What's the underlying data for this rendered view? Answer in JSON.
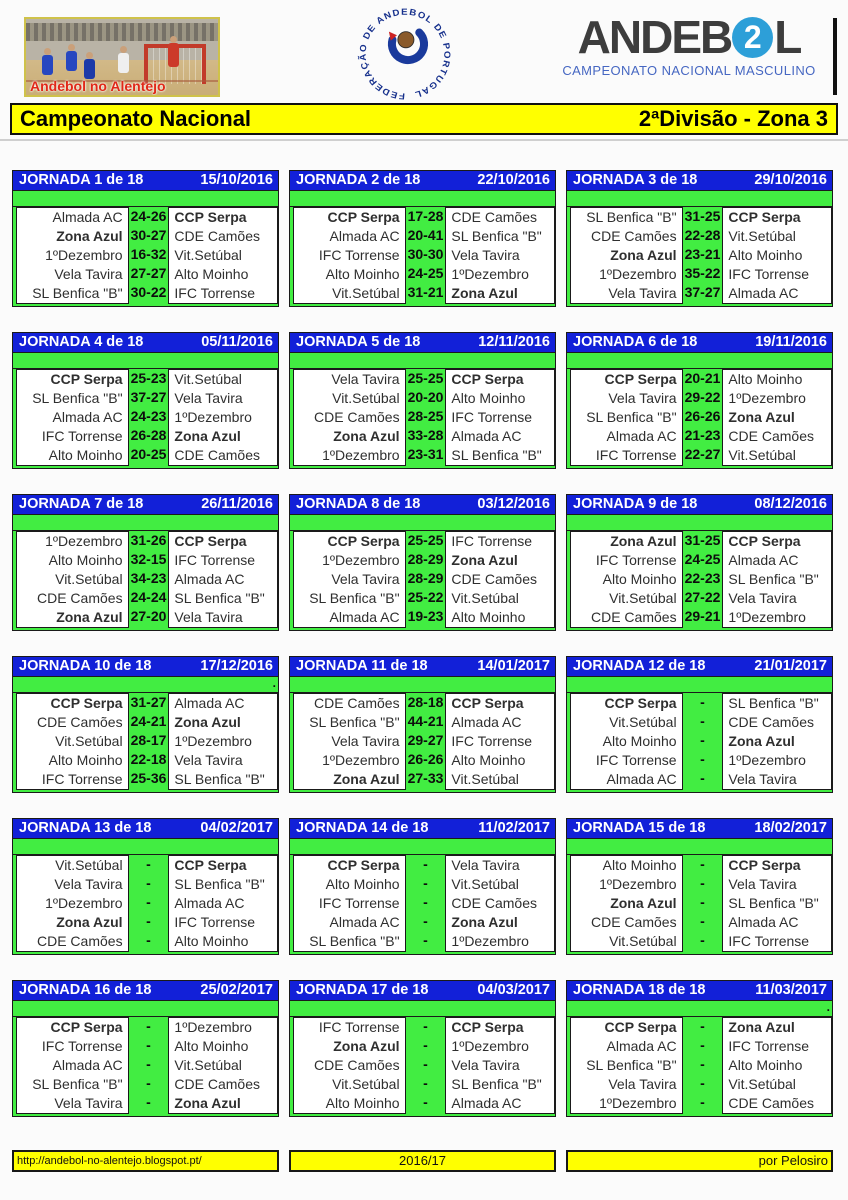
{
  "header": {
    "photo_caption": "Andebol no Alentejo",
    "federation_ring_text": "FEDERAÇÃO DE ANDEBOL DE PORTUGAL",
    "brand": {
      "part1": "ANDEB",
      "circle_digit": "2",
      "part2": "L",
      "subtitle": "CAMPEONATO NACIONAL MASCULINO"
    }
  },
  "title_bar": {
    "left": "Campeonato Nacional",
    "right": "2ªDivisão - Zona 3"
  },
  "colors": {
    "header_blue": "#1220d8",
    "bright_green": "#42ed42",
    "team_highlight_blue": "#1616e0",
    "banner_yellow": "#ffff00",
    "brand_circle_blue": "#2d9fd8"
  },
  "highlight_teams": [
    "CCP Serpa",
    "Zona Azul"
  ],
  "jornadas": [
    {
      "title": "JORNADA 1 de 18",
      "date": "15/10/2016",
      "dot": false,
      "matches": [
        {
          "home": "Almada AC",
          "score": "24-26",
          "away": "CCP Serpa"
        },
        {
          "home": "Zona Azul",
          "score": "30-27",
          "away": "CDE Camões"
        },
        {
          "home": "1ºDezembro",
          "score": "16-32",
          "away": "Vit.Setúbal"
        },
        {
          "home": "Vela Tavira",
          "score": "27-27",
          "away": "Alto Moinho"
        },
        {
          "home": "SL Benfica \"B\"",
          "score": "30-22",
          "away": "IFC Torrense"
        }
      ]
    },
    {
      "title": "JORNADA 2 de 18",
      "date": "22/10/2016",
      "dot": false,
      "matches": [
        {
          "home": "CCP Serpa",
          "score": "17-28",
          "away": "CDE Camões"
        },
        {
          "home": "Almada AC",
          "score": "20-41",
          "away": "SL Benfica \"B\""
        },
        {
          "home": "IFC Torrense",
          "score": "30-30",
          "away": "Vela Tavira"
        },
        {
          "home": "Alto Moinho",
          "score": "24-25",
          "away": "1ºDezembro"
        },
        {
          "home": "Vit.Setúbal",
          "score": "31-21",
          "away": "Zona Azul"
        }
      ]
    },
    {
      "title": "JORNADA 3 de 18",
      "date": "29/10/2016",
      "dot": false,
      "matches": [
        {
          "home": "SL Benfica \"B\"",
          "score": "31-25",
          "away": "CCP Serpa"
        },
        {
          "home": "CDE Camões",
          "score": "22-28",
          "away": "Vit.Setúbal"
        },
        {
          "home": "Zona Azul",
          "score": "23-21",
          "away": "Alto Moinho"
        },
        {
          "home": "1ºDezembro",
          "score": "35-22",
          "away": "IFC Torrense"
        },
        {
          "home": "Vela Tavira",
          "score": "37-27",
          "away": "Almada AC"
        }
      ]
    },
    {
      "title": "JORNADA 4 de 18",
      "date": "05/11/2016",
      "dot": false,
      "matches": [
        {
          "home": "CCP Serpa",
          "score": "25-23",
          "away": "Vit.Setúbal"
        },
        {
          "home": "SL Benfica \"B\"",
          "score": "37-27",
          "away": "Vela Tavira"
        },
        {
          "home": "Almada AC",
          "score": "24-23",
          "away": "1ºDezembro"
        },
        {
          "home": "IFC Torrense",
          "score": "26-28",
          "away": "Zona Azul"
        },
        {
          "home": "Alto Moinho",
          "score": "20-25",
          "away": "CDE Camões"
        }
      ]
    },
    {
      "title": "JORNADA 5 de 18",
      "date": "12/11/2016",
      "dot": false,
      "matches": [
        {
          "home": "Vela Tavira",
          "score": "25-25",
          "away": "CCP Serpa"
        },
        {
          "home": "Vit.Setúbal",
          "score": "20-20",
          "away": "Alto Moinho"
        },
        {
          "home": "CDE Camões",
          "score": "28-25",
          "away": "IFC Torrense"
        },
        {
          "home": "Zona Azul",
          "score": "33-28",
          "away": "Almada AC"
        },
        {
          "home": "1ºDezembro",
          "score": "23-31",
          "away": "SL Benfica \"B\""
        }
      ]
    },
    {
      "title": "JORNADA 6 de 18",
      "date": "19/11/2016",
      "dot": false,
      "matches": [
        {
          "home": "CCP Serpa",
          "score": "20-21",
          "away": "Alto Moinho"
        },
        {
          "home": "Vela Tavira",
          "score": "29-22",
          "away": "1ºDezembro"
        },
        {
          "home": "SL Benfica \"B\"",
          "score": "26-26",
          "away": "Zona Azul"
        },
        {
          "home": "Almada AC",
          "score": "21-23",
          "away": "CDE Camões"
        },
        {
          "home": "IFC Torrense",
          "score": "22-27",
          "away": "Vit.Setúbal"
        }
      ]
    },
    {
      "title": "JORNADA 7 de 18",
      "date": "26/11/2016",
      "dot": false,
      "matches": [
        {
          "home": "1ºDezembro",
          "score": "31-26",
          "away": "CCP Serpa"
        },
        {
          "home": "Alto Moinho",
          "score": "32-15",
          "away": "IFC Torrense"
        },
        {
          "home": "Vit.Setúbal",
          "score": "34-23",
          "away": "Almada AC"
        },
        {
          "home": "CDE Camões",
          "score": "24-24",
          "away": "SL Benfica \"B\""
        },
        {
          "home": "Zona Azul",
          "score": "27-20",
          "away": "Vela Tavira"
        }
      ]
    },
    {
      "title": "JORNADA 8 de 18",
      "date": "03/12/2016",
      "dot": false,
      "matches": [
        {
          "home": "CCP Serpa",
          "score": "25-25",
          "away": "IFC Torrense"
        },
        {
          "home": "1ºDezembro",
          "score": "28-29",
          "away": "Zona Azul"
        },
        {
          "home": "Vela Tavira",
          "score": "28-29",
          "away": "CDE Camões"
        },
        {
          "home": "SL Benfica \"B\"",
          "score": "25-22",
          "away": "Vit.Setúbal"
        },
        {
          "home": "Almada AC",
          "score": "19-23",
          "away": "Alto Moinho"
        }
      ]
    },
    {
      "title": "JORNADA 9 de 18",
      "date": "08/12/2016",
      "dot": false,
      "matches": [
        {
          "home": "Zona Azul",
          "score": "31-25",
          "away": "CCP Serpa"
        },
        {
          "home": "IFC Torrense",
          "score": "24-25",
          "away": "Almada AC"
        },
        {
          "home": "Alto Moinho",
          "score": "22-23",
          "away": "SL Benfica \"B\""
        },
        {
          "home": "Vit.Setúbal",
          "score": "27-22",
          "away": "Vela Tavira"
        },
        {
          "home": "CDE Camões",
          "score": "29-21",
          "away": "1ºDezembro"
        }
      ]
    },
    {
      "title": "JORNADA 10 de 18",
      "date": "17/12/2016",
      "dot": true,
      "matches": [
        {
          "home": "CCP Serpa",
          "score": "31-27",
          "away": "Almada AC"
        },
        {
          "home": "CDE Camões",
          "score": "24-21",
          "away": "Zona Azul"
        },
        {
          "home": "Vit.Setúbal",
          "score": "28-17",
          "away": "1ºDezembro"
        },
        {
          "home": "Alto Moinho",
          "score": "22-18",
          "away": "Vela Tavira"
        },
        {
          "home": "IFC Torrense",
          "score": "25-36",
          "away": "SL Benfica \"B\""
        }
      ]
    },
    {
      "title": "JORNADA 11 de 18",
      "date": "14/01/2017",
      "dot": false,
      "matches": [
        {
          "home": "CDE Camões",
          "score": "28-18",
          "away": "CCP Serpa"
        },
        {
          "home": "SL Benfica \"B\"",
          "score": "44-21",
          "away": "Almada AC"
        },
        {
          "home": "Vela Tavira",
          "score": "29-27",
          "away": "IFC Torrense"
        },
        {
          "home": "1ºDezembro",
          "score": "26-26",
          "away": "Alto Moinho"
        },
        {
          "home": "Zona Azul",
          "score": "27-33",
          "away": "Vit.Setúbal"
        }
      ]
    },
    {
      "title": "JORNADA 12 de 18",
      "date": "21/01/2017",
      "dot": false,
      "matches": [
        {
          "home": "CCP Serpa",
          "score": "-",
          "away": "SL Benfica \"B\""
        },
        {
          "home": "Vit.Setúbal",
          "score": "-",
          "away": "CDE Camões"
        },
        {
          "home": "Alto Moinho",
          "score": "-",
          "away": "Zona Azul"
        },
        {
          "home": "IFC Torrense",
          "score": "-",
          "away": "1ºDezembro"
        },
        {
          "home": "Almada AC",
          "score": "-",
          "away": "Vela Tavira"
        }
      ]
    },
    {
      "title": "JORNADA 13 de 18",
      "date": "04/02/2017",
      "dot": false,
      "matches": [
        {
          "home": "Vit.Setúbal",
          "score": "-",
          "away": "CCP Serpa"
        },
        {
          "home": "Vela Tavira",
          "score": "-",
          "away": "SL Benfica \"B\""
        },
        {
          "home": "1ºDezembro",
          "score": "-",
          "away": "Almada AC"
        },
        {
          "home": "Zona Azul",
          "score": "-",
          "away": "IFC Torrense"
        },
        {
          "home": "CDE Camões",
          "score": "-",
          "away": "Alto Moinho"
        }
      ]
    },
    {
      "title": "JORNADA 14 de 18",
      "date": "11/02/2017",
      "dot": false,
      "matches": [
        {
          "home": "CCP Serpa",
          "score": "-",
          "away": "Vela Tavira"
        },
        {
          "home": "Alto Moinho",
          "score": "-",
          "away": "Vit.Setúbal"
        },
        {
          "home": "IFC Torrense",
          "score": "-",
          "away": "CDE Camões"
        },
        {
          "home": "Almada AC",
          "score": "-",
          "away": "Zona Azul"
        },
        {
          "home": "SL Benfica \"B\"",
          "score": "-",
          "away": "1ºDezembro"
        }
      ]
    },
    {
      "title": "JORNADA 15 de 18",
      "date": "18/02/2017",
      "dot": false,
      "matches": [
        {
          "home": "Alto Moinho",
          "score": "-",
          "away": "CCP Serpa"
        },
        {
          "home": "1ºDezembro",
          "score": "-",
          "away": "Vela Tavira"
        },
        {
          "home": "Zona Azul",
          "score": "-",
          "away": "SL Benfica \"B\""
        },
        {
          "home": "CDE Camões",
          "score": "-",
          "away": "Almada AC"
        },
        {
          "home": "Vit.Setúbal",
          "score": "-",
          "away": "IFC Torrense"
        }
      ]
    },
    {
      "title": "JORNADA 16 de 18",
      "date": "25/02/2017",
      "dot": false,
      "matches": [
        {
          "home": "CCP Serpa",
          "score": "-",
          "away": "1ºDezembro"
        },
        {
          "home": "IFC Torrense",
          "score": "-",
          "away": "Alto Moinho"
        },
        {
          "home": "Almada AC",
          "score": "-",
          "away": "Vit.Setúbal"
        },
        {
          "home": "SL Benfica \"B\"",
          "score": "-",
          "away": "CDE Camões"
        },
        {
          "home": "Vela Tavira",
          "score": "-",
          "away": "Zona Azul"
        }
      ]
    },
    {
      "title": "JORNADA 17 de 18",
      "date": "04/03/2017",
      "dot": false,
      "matches": [
        {
          "home": "IFC Torrense",
          "score": "-",
          "away": "CCP Serpa"
        },
        {
          "home": "Zona Azul",
          "score": "-",
          "away": "1ºDezembro"
        },
        {
          "home": "CDE Camões",
          "score": "-",
          "away": "Vela Tavira"
        },
        {
          "home": "Vit.Setúbal",
          "score": "-",
          "away": "SL Benfica \"B\""
        },
        {
          "home": "Alto Moinho",
          "score": "-",
          "away": "Almada AC"
        }
      ]
    },
    {
      "title": "JORNADA 18 de 18",
      "date": "11/03/2017",
      "dot": true,
      "matches": [
        {
          "home": "CCP Serpa",
          "score": "-",
          "away": "Zona Azul"
        },
        {
          "home": "Almada AC",
          "score": "-",
          "away": "IFC Torrense"
        },
        {
          "home": "SL Benfica \"B\"",
          "score": "-",
          "away": "Alto Moinho"
        },
        {
          "home": "Vela Tavira",
          "score": "-",
          "away": "Vit.Setúbal"
        },
        {
          "home": "1ºDezembro",
          "score": "-",
          "away": "CDE Camões"
        }
      ]
    }
  ],
  "footer": {
    "left": "http://andebol-no-alentejo.blogspot.pt/",
    "center": "2016/17",
    "right": "por Pelosiro"
  }
}
